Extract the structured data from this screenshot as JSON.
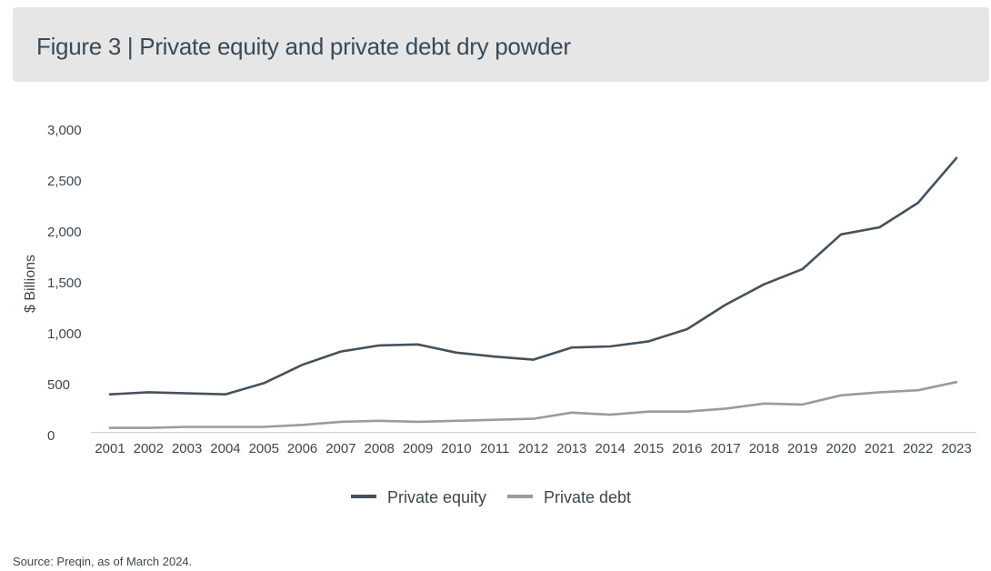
{
  "header": {
    "title": "Figure 3 | Private equity and private debt dry powder"
  },
  "footer": {
    "source": "Source: Preqin, as of March 2024."
  },
  "colors": {
    "private_equity": "#46515b",
    "private_debt": "#9b9b9b",
    "axis": "#cfcfcf",
    "text": "#3c4650"
  },
  "chart_data": {
    "type": "line",
    "title": "Figure 3 | Private equity and private debt dry powder",
    "xlabel": "",
    "ylabel": "$ Billions",
    "ylim": [
      0,
      3000
    ],
    "yticks": [
      0,
      500,
      1000,
      1500,
      2000,
      2500,
      3000
    ],
    "ytick_labels": [
      "0",
      "500",
      "1,000",
      "1,500",
      "2,000",
      "2,500",
      "3,000"
    ],
    "grid": false,
    "legend_position": "bottom-center",
    "x": [
      "2001",
      "2002",
      "2003",
      "2004",
      "2005",
      "2006",
      "2007",
      "2008",
      "2009",
      "2010",
      "2011",
      "2012",
      "2013",
      "2014",
      "2015",
      "2016",
      "2017",
      "2018",
      "2019",
      "2020",
      "2021",
      "2022",
      "2023"
    ],
    "series": [
      {
        "name": "Private equity",
        "values": [
          360,
          380,
          370,
          360,
          470,
          650,
          780,
          840,
          850,
          770,
          730,
          700,
          820,
          830,
          880,
          1000,
          1240,
          1440,
          1590,
          1930,
          2000,
          2240,
          2680
        ]
      },
      {
        "name": "Private debt",
        "values": [
          30,
          30,
          40,
          40,
          40,
          60,
          90,
          100,
          90,
          100,
          110,
          120,
          180,
          160,
          190,
          190,
          220,
          270,
          260,
          350,
          380,
          400,
          480
        ]
      }
    ]
  }
}
